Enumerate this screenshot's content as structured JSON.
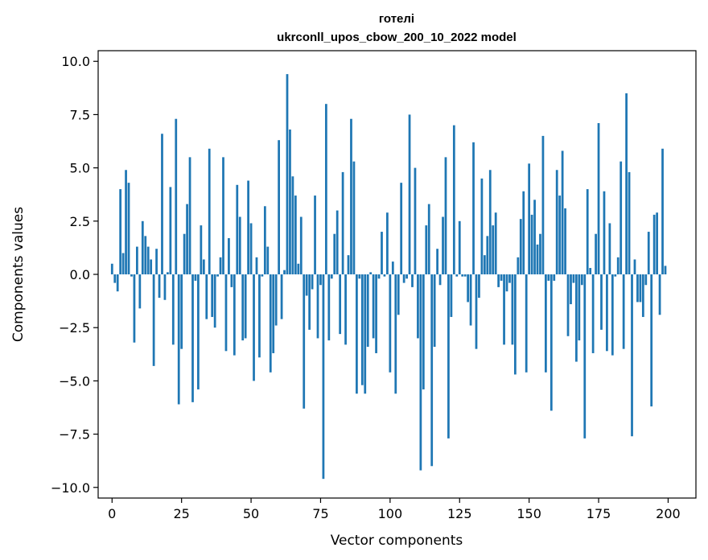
{
  "chart_data": {
    "type": "bar",
    "title": "готелі",
    "subtitle": "ukrconll_upos_cbow_200_10_2022 model",
    "xlabel": "Vector components",
    "ylabel": "Components values",
    "xlim": [
      -5,
      210
    ],
    "ylim": [
      -10.5,
      10.5
    ],
    "x_ticks": [
      0,
      25,
      50,
      75,
      100,
      125,
      150,
      175,
      200
    ],
    "x_tick_labels": [
      "0",
      "25",
      "50",
      "75",
      "100",
      "125",
      "150",
      "175",
      "200"
    ],
    "y_ticks": [
      10,
      7.5,
      5,
      2.5,
      0,
      -2.5,
      -5,
      -7.5,
      -10
    ],
    "y_tick_labels": [
      "10.0",
      "7.5",
      "5.0",
      "2.5",
      "0.0",
      "−2.5",
      "−5.0",
      "−7.5",
      "−10.0"
    ],
    "grid": false,
    "bar_color": "#1f77b4",
    "values": [
      0.5,
      -0.4,
      -0.8,
      4.0,
      1.0,
      4.9,
      4.3,
      -0.1,
      -3.2,
      1.3,
      -1.6,
      2.5,
      1.8,
      1.3,
      0.7,
      -4.3,
      1.2,
      -1.1,
      6.6,
      -1.2,
      0.1,
      4.1,
      -3.3,
      7.3,
      -6.1,
      -3.5,
      1.9,
      3.3,
      5.5,
      -6.0,
      -0.3,
      -5.4,
      2.3,
      0.7,
      -2.1,
      5.9,
      -2.0,
      -2.5,
      -0.1,
      0.8,
      5.5,
      -3.6,
      1.7,
      -0.6,
      -3.8,
      4.2,
      2.7,
      -3.1,
      -3.0,
      4.4,
      2.4,
      -5.0,
      0.8,
      -3.9,
      -0.1,
      3.2,
      1.3,
      -4.6,
      -3.7,
      -2.4,
      6.3,
      -2.1,
      0.2,
      9.4,
      6.8,
      4.6,
      3.7,
      0.5,
      2.7,
      -6.3,
      -1.0,
      -2.6,
      -0.7,
      3.7,
      -3.0,
      -0.5,
      -9.6,
      8.0,
      -3.1,
      -0.2,
      1.9,
      3.0,
      -2.8,
      4.8,
      -3.3,
      0.9,
      7.3,
      5.3,
      -5.6,
      -0.2,
      -5.2,
      -5.6,
      -3.4,
      0.1,
      -3.0,
      -3.7,
      -0.2,
      2.0,
      -0.1,
      2.9,
      -4.6,
      0.6,
      -5.6,
      -1.9,
      4.3,
      -0.4,
      -0.2,
      7.5,
      -0.6,
      5.0,
      -3.0,
      -9.2,
      -5.4,
      2.3,
      3.3,
      -9.0,
      -3.4,
      1.2,
      -0.5,
      2.7,
      5.5,
      -7.7,
      -2.0,
      7.0,
      -0.1,
      2.5,
      -0.1,
      -0.1,
      -1.3,
      -2.4,
      6.2,
      -3.5,
      -1.1,
      4.5,
      0.9,
      1.8,
      4.9,
      2.3,
      2.9,
      -0.6,
      -0.3,
      -3.3,
      -0.8,
      -0.4,
      -3.3,
      -4.7,
      0.8,
      2.6,
      3.9,
      -4.6,
      5.2,
      2.8,
      3.5,
      1.4,
      1.9,
      6.5,
      -4.6,
      -0.3,
      -6.4,
      -0.3,
      4.9,
      3.7,
      5.8,
      3.1,
      -2.9,
      -1.4,
      -0.4,
      -4.1,
      -3.1,
      -0.5,
      -7.7,
      4.0,
      0.3,
      -3.7,
      1.9,
      7.1,
      -2.6,
      3.9,
      -3.6,
      2.4,
      -3.8,
      -0.1,
      0.8,
      5.3,
      -3.5,
      8.5,
      4.8,
      -7.6,
      0.7,
      -1.3,
      -1.3,
      -2.0,
      -0.5,
      2.0,
      -6.2,
      2.8,
      2.9,
      -1.9,
      5.9,
      0.4
    ]
  }
}
